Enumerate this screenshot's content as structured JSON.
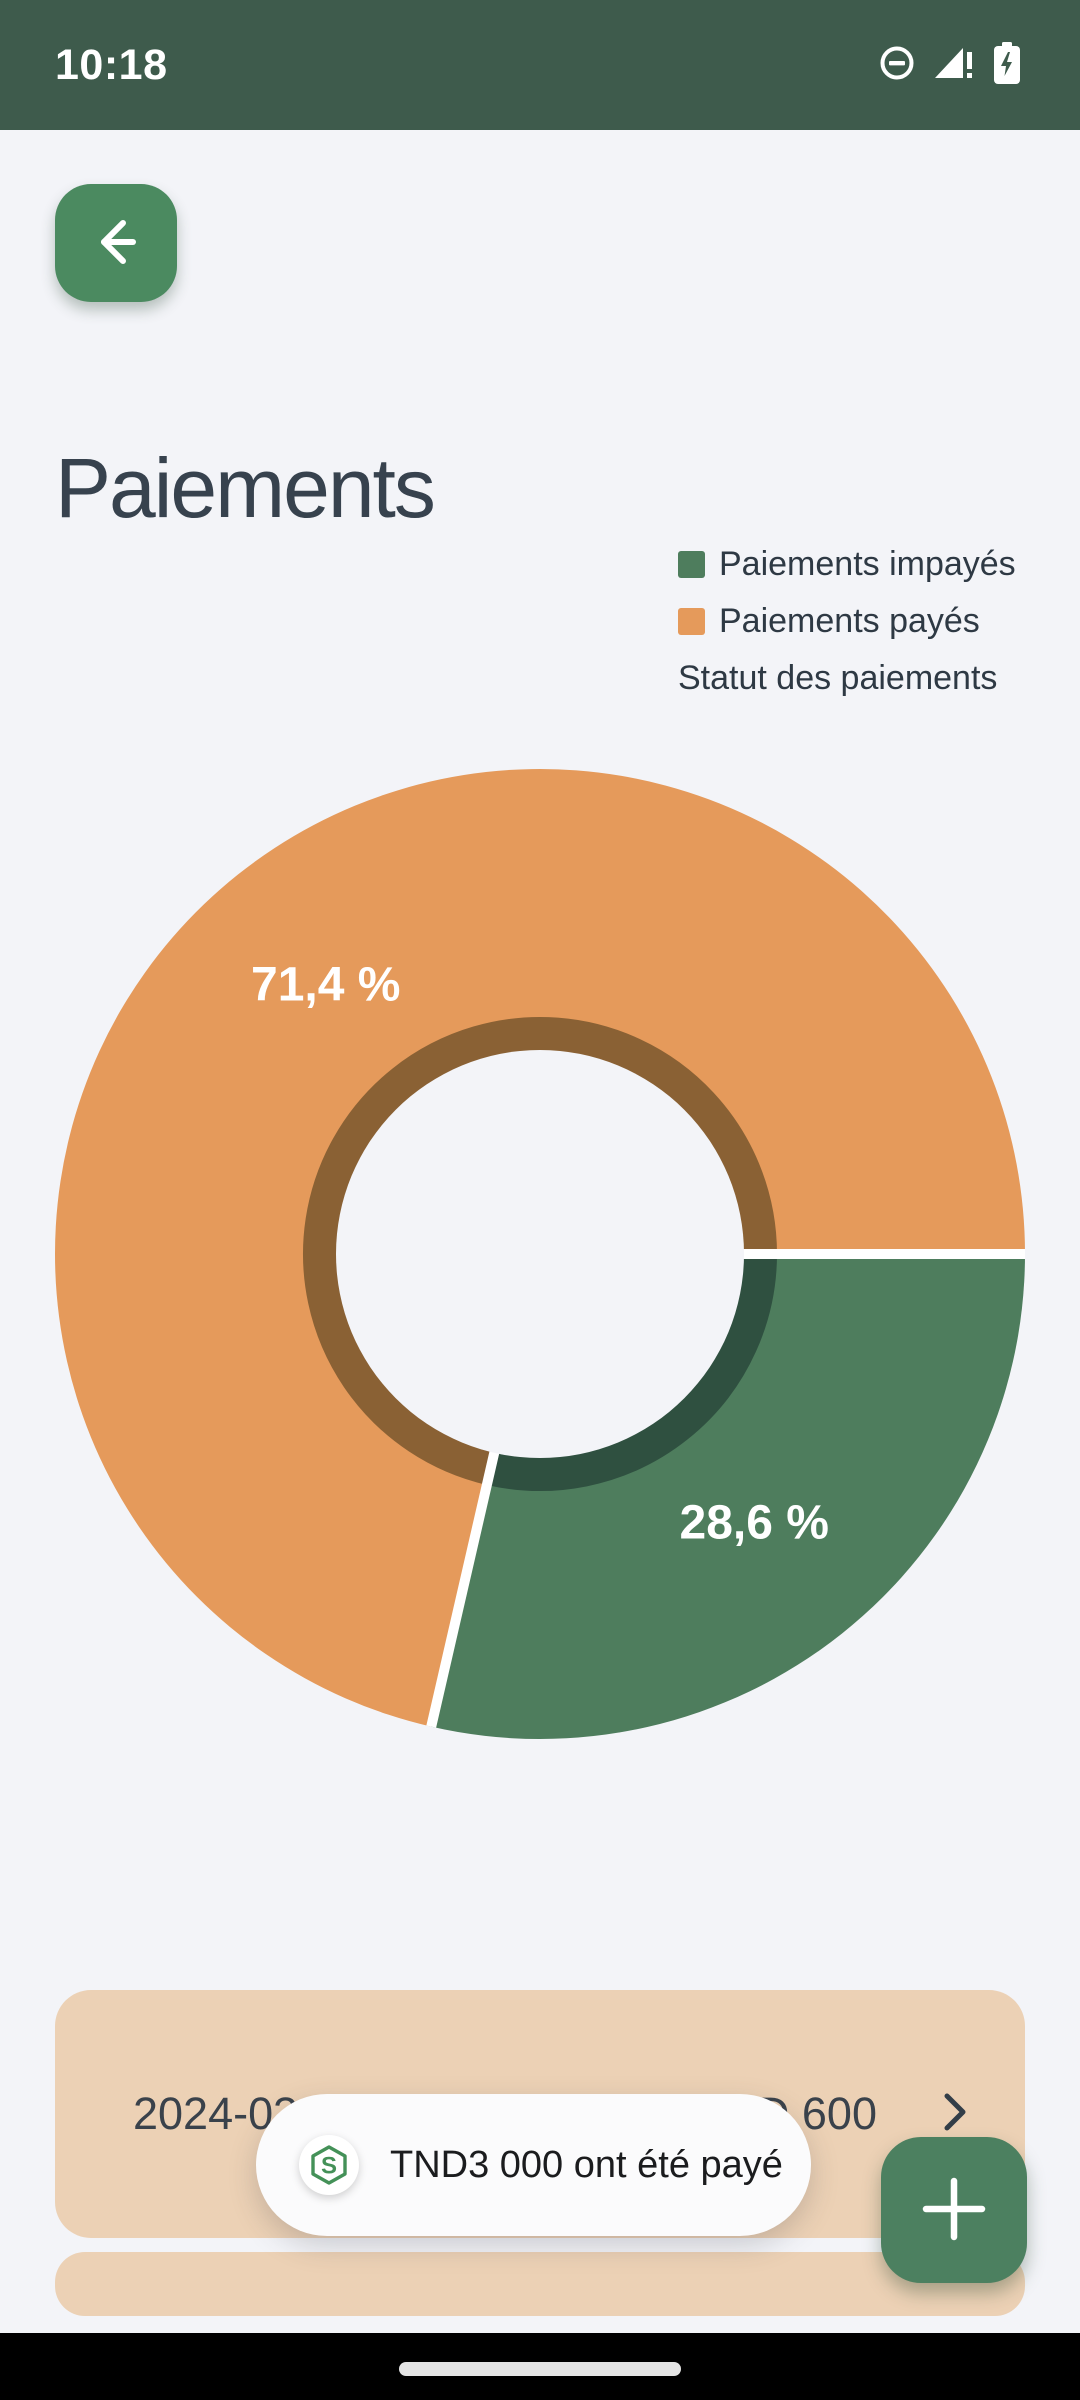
{
  "status_bar": {
    "time": "10:18",
    "bg_color": "#3E5B4C",
    "icons": [
      "do-not-disturb",
      "signal-no-internet",
      "battery-charging"
    ]
  },
  "header": {
    "title": "Paiements",
    "back_button": "arrow-left"
  },
  "page": {
    "bg_color": "#F3F4F8",
    "accent_green": "#4B8A60",
    "card_color": "#ECD1B5"
  },
  "legend": {
    "items": [
      {
        "label": "Paiements impayés",
        "color": "#4E7D5D"
      },
      {
        "label": "Paiements payés",
        "color": "#E59A5B"
      }
    ],
    "footer": "Statut des paiements"
  },
  "chart_data": {
    "type": "pie",
    "donut": true,
    "title": "Statut des paiements",
    "unit": "%",
    "start_angle_deg": 0,
    "direction": "clockwise",
    "legend_position": "top-right",
    "slices": [
      {
        "name": "Paiements impayés",
        "value": 28.6,
        "label": "28,6 %",
        "color": "#4E7D5D",
        "inner_ring_color": "#2F5040"
      },
      {
        "name": "Paiements payés",
        "value": 71.4,
        "label": "71,4 %",
        "color": "#E59A5B",
        "inner_ring_color": "#8A6134"
      }
    ]
  },
  "payments": {
    "items": [
      {
        "datetime": "2024-03-01 08:35",
        "amount": "TND 600"
      }
    ]
  },
  "toast": {
    "message": "TND3 000 ont été payé",
    "logo_color": "#449158"
  },
  "fab": {
    "action": "add-payment"
  }
}
